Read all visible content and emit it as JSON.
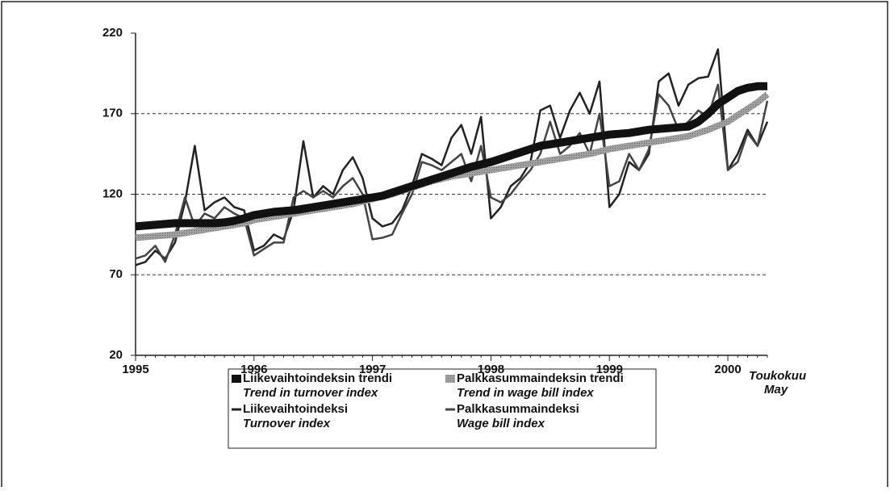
{
  "chart_data": {
    "type": "line",
    "categories": [
      "1995",
      null,
      null,
      null,
      null,
      null,
      null,
      null,
      null,
      null,
      null,
      null,
      "1996",
      null,
      null,
      null,
      null,
      null,
      null,
      null,
      null,
      null,
      null,
      null,
      "1997",
      null,
      null,
      null,
      null,
      null,
      null,
      null,
      null,
      null,
      null,
      null,
      "1998",
      null,
      null,
      null,
      null,
      null,
      null,
      null,
      null,
      null,
      null,
      null,
      "1999",
      null,
      null,
      null,
      null,
      null,
      null,
      null,
      null,
      null,
      null,
      null,
      "2000",
      null,
      null,
      null,
      null
    ],
    "annotations": [
      "Toukokuu",
      "May"
    ],
    "ylim": [
      20,
      220
    ],
    "yticks": [
      20,
      70,
      120,
      170,
      220
    ],
    "grid": true,
    "series": [
      {
        "name": "Liikevaihtoindeksin trendi",
        "name_en": "Trend in turnover index",
        "color": "#111111",
        "width": 10,
        "values": [
          100,
          100.5,
          101,
          101.5,
          102,
          102,
          102,
          102,
          102,
          102.5,
          103.5,
          105,
          107,
          108,
          109,
          109.5,
          110,
          111,
          112,
          113,
          114,
          115,
          116,
          117,
          118,
          119,
          121,
          123,
          125,
          127,
          129,
          131,
          133,
          135,
          137,
          138.5,
          140,
          142,
          144,
          146,
          148,
          150,
          151,
          152,
          153,
          154,
          155,
          156,
          157,
          157.5,
          158,
          159,
          160,
          160.5,
          161,
          161.5,
          162,
          165,
          170,
          176,
          180,
          184,
          186,
          187,
          187
        ]
      },
      {
        "name": "Palkkasummaindeksin trendi",
        "name_en": "Trend in wage bill index",
        "color": "#a0a0a0",
        "width": 8,
        "values": [
          93,
          93.5,
          94,
          94.5,
          95,
          96,
          97,
          98,
          99,
          100,
          101,
          102,
          104,
          105,
          106,
          107,
          108,
          109,
          110,
          111,
          112,
          113,
          114,
          115.5,
          117,
          118.5,
          120,
          122,
          124,
          126,
          128,
          129.5,
          131,
          132,
          133,
          134,
          135,
          136,
          137,
          138,
          139,
          140,
          141,
          142,
          143,
          144,
          145,
          146.5,
          148,
          149,
          150,
          151,
          152,
          153,
          154,
          155,
          156,
          158,
          160,
          162.5,
          165,
          169,
          173,
          177,
          182
        ]
      },
      {
        "name": "Liikevaihtoindeksi",
        "name_en": "Turnover index",
        "color": "#222222",
        "width": 2.5,
        "values": [
          76,
          78,
          85,
          80,
          90,
          115,
          150,
          110,
          115,
          118,
          112,
          110,
          85,
          88,
          95,
          92,
          110,
          153,
          118,
          125,
          120,
          135,
          143,
          130,
          105,
          100,
          102,
          110,
          125,
          145,
          142,
          138,
          155,
          163,
          145,
          168,
          105,
          112,
          125,
          130,
          140,
          172,
          175,
          155,
          172,
          183,
          170,
          190,
          112,
          120,
          140,
          135,
          145,
          190,
          195,
          175,
          188,
          192,
          193,
          210,
          135,
          145,
          160,
          150,
          165
        ]
      },
      {
        "name": "Palkkasummaindeksi",
        "name_en": "Wage bill index",
        "color": "#444444",
        "width": 2.5,
        "values": [
          80,
          82,
          88,
          78,
          95,
          118,
          100,
          108,
          105,
          112,
          108,
          105,
          82,
          86,
          90,
          90,
          118,
          122,
          118,
          122,
          118,
          125,
          130,
          120,
          92,
          93,
          95,
          108,
          120,
          140,
          138,
          135,
          140,
          145,
          128,
          150,
          118,
          115,
          120,
          128,
          135,
          145,
          165,
          145,
          150,
          158,
          145,
          170,
          125,
          128,
          145,
          135,
          148,
          182,
          175,
          160,
          165,
          172,
          168,
          188,
          135,
          140,
          158,
          150,
          178
        ]
      }
    ]
  }
}
